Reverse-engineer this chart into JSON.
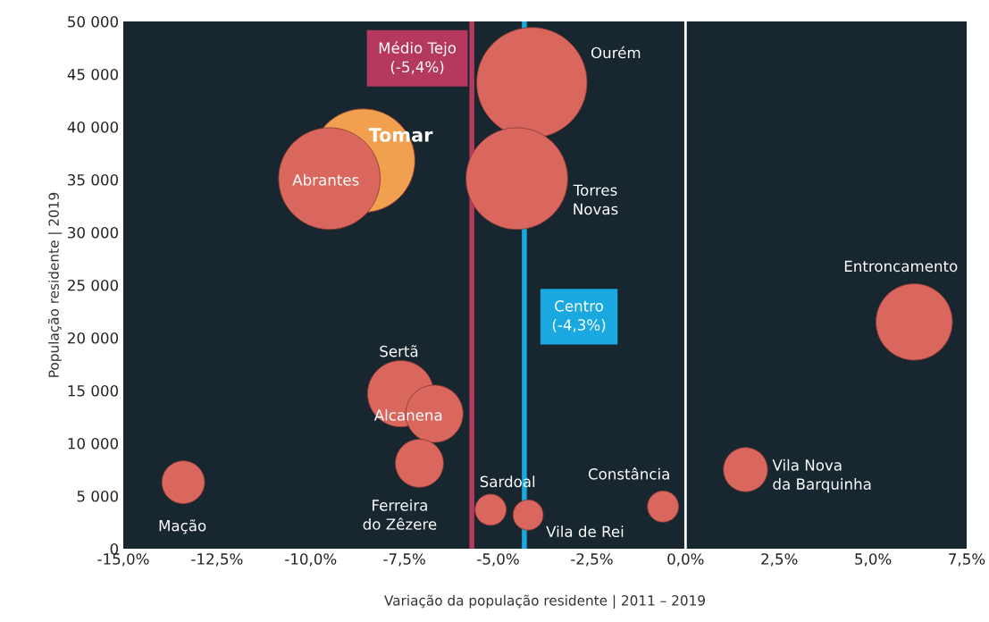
{
  "chart_data": {
    "type": "bubble",
    "xlabel": "Variação da população residente | 2011 – 2019",
    "ylabel": "População residente | 2019",
    "series": [
      {
        "name": "Ourém",
        "color": "#d9675d",
        "x": [
          -4.1
        ],
        "values": [
          44200
        ],
        "sizes": [
          1
        ]
      },
      {
        "name": "Tomar",
        "color": "#f0a04f",
        "x": [
          -8.6
        ],
        "values": [
          36800
        ],
        "sizes": [
          0.88
        ]
      },
      {
        "name": "Abrantes",
        "color": "#d9675d",
        "x": [
          -9.5
        ],
        "values": [
          35100
        ],
        "sizes": [
          0.85
        ]
      },
      {
        "name": "Torres\nNovas",
        "color": "#d9675d",
        "x": [
          -4.5
        ],
        "values": [
          35100
        ],
        "sizes": [
          0.85
        ]
      },
      {
        "name": "Entroncamento",
        "color": "#d9675d",
        "x": [
          6.1
        ],
        "values": [
          21500
        ],
        "sizes": [
          0.48
        ]
      },
      {
        "name": "Sertã",
        "color": "#d9675d",
        "x": [
          -7.6
        ],
        "values": [
          14700
        ],
        "sizes": [
          0.36
        ]
      },
      {
        "name": "Alcanena",
        "color": "#d9675d",
        "x": [
          -6.7
        ],
        "values": [
          12800
        ],
        "sizes": [
          0.27
        ]
      },
      {
        "name": "Ferreira\ndo Zêzere",
        "color": "#d9675d",
        "x": [
          -7.1
        ],
        "values": [
          8100
        ],
        "sizes": [
          0.19
        ]
      },
      {
        "name": "Mação",
        "color": "#d9675d",
        "x": [
          -13.4
        ],
        "values": [
          6300
        ],
        "sizes": [
          0.15
        ]
      },
      {
        "name": "Vila Nova\nda Barquinha",
        "color": "#d9675d",
        "x": [
          1.6
        ],
        "values": [
          7500
        ],
        "sizes": [
          0.16
        ]
      },
      {
        "name": "Sardoal",
        "color": "#d9675d",
        "x": [
          -5.2
        ],
        "values": [
          3700
        ],
        "sizes": [
          0.08
        ]
      },
      {
        "name": "Vila de Rei",
        "color": "#d9675d",
        "x": [
          -4.2
        ],
        "values": [
          3200
        ],
        "sizes": [
          0.075
        ]
      },
      {
        "name": "Constância",
        "color": "#d9675d",
        "x": [
          -0.6
        ],
        "values": [
          4000
        ],
        "sizes": [
          0.08
        ]
      }
    ],
    "xlim": [
      -15,
      7.5
    ],
    "xticks": [
      {
        "value": -15,
        "label": "-15,0%"
      },
      {
        "value": -12.5,
        "label": "-12,5%"
      },
      {
        "value": -10,
        "label": "-10,0%"
      },
      {
        "value": -7.5,
        "label": "-7,5%"
      },
      {
        "value": -5,
        "label": "-5,0%"
      },
      {
        "value": -2.5,
        "label": "-2,5%"
      },
      {
        "value": 0,
        "label": "0,0%"
      },
      {
        "value": 2.5,
        "label": "2,5%"
      },
      {
        "value": 5,
        "label": "5,0%"
      },
      {
        "value": 7.5,
        "label": "7,5%"
      }
    ],
    "ylim": [
      0,
      50000
    ],
    "yticks": [
      {
        "value": 0,
        "label": "0"
      },
      {
        "value": 5000,
        "label": "5 000"
      },
      {
        "value": 10000,
        "label": "10 000"
      },
      {
        "value": 15000,
        "label": "15 000"
      },
      {
        "value": 20000,
        "label": "20 000"
      },
      {
        "value": 25000,
        "label": "25 000"
      },
      {
        "value": 30000,
        "label": "30 000"
      },
      {
        "value": 35000,
        "label": "35 000"
      },
      {
        "value": 40000,
        "label": "40 000"
      },
      {
        "value": 45000,
        "label": "45 000"
      },
      {
        "value": 50000,
        "label": "50 000"
      }
    ],
    "ref_lines": [
      {
        "axis": "x",
        "value": -5.7,
        "label": "Médio Tejo\n(-5,4%)",
        "color": "#b5385e"
      },
      {
        "axis": "x",
        "value": -4.3,
        "label": "Centro\n(-4,3%)",
        "color": "#1aa8e0"
      },
      {
        "axis": "x",
        "value": 0,
        "color": "#ffffff"
      }
    ],
    "grid": false
  }
}
